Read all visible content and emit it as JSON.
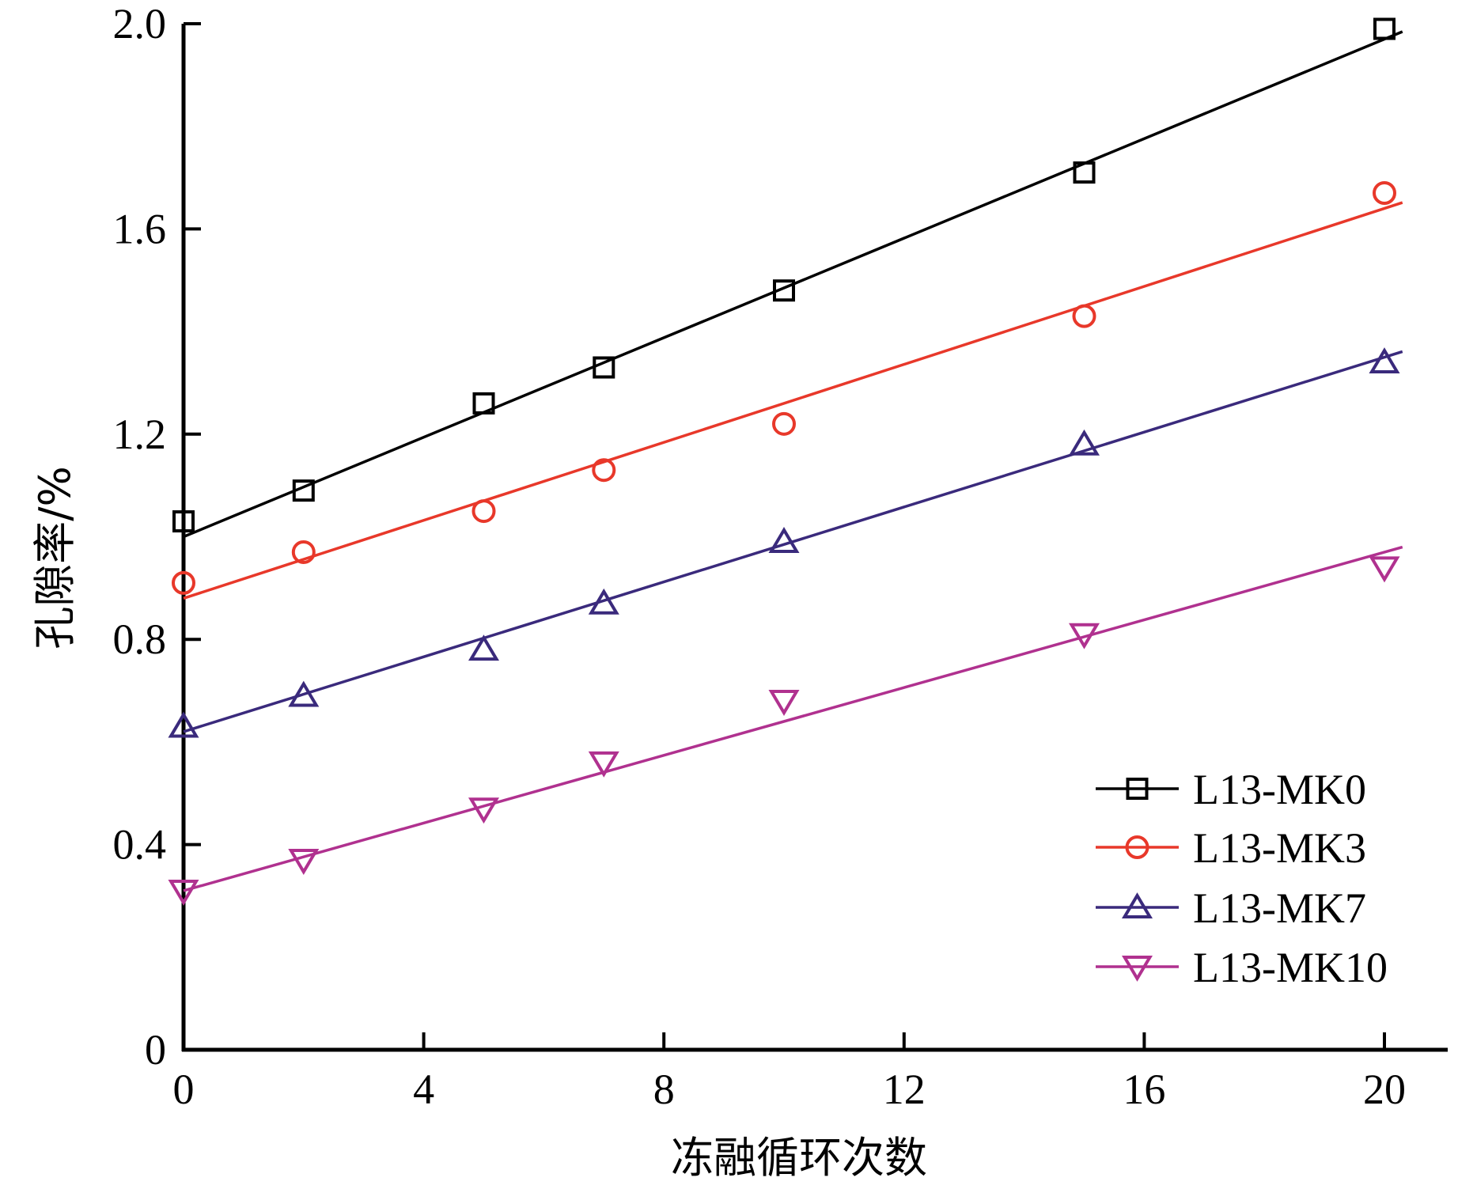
{
  "chart_data": {
    "type": "scatter",
    "title": "",
    "xlabel": "冻融循环次数",
    "ylabel": "孔隙率/%",
    "xlim": [
      0,
      21
    ],
    "ylim": [
      0,
      2.0
    ],
    "xticks": [
      0,
      4,
      8,
      12,
      16,
      20
    ],
    "yticks": [
      0,
      0.4,
      0.8,
      1.2,
      1.6,
      2.0
    ],
    "xtick_labels": [
      "0",
      "4",
      "8",
      "12",
      "16",
      "20"
    ],
    "ytick_labels": [
      "0",
      "0.4",
      "0.8",
      "1.2",
      "1.6",
      "2.0"
    ],
    "grid": false,
    "legend_position": "bottom-right",
    "x": [
      0,
      2,
      5,
      7,
      10,
      15,
      20
    ],
    "series": [
      {
        "name": "L13-MK0",
        "marker": "square",
        "color": "#000000",
        "values": [
          1.03,
          1.09,
          1.26,
          1.33,
          1.48,
          1.71,
          1.99
        ],
        "fit_line": [
          1.0,
          1.97
        ]
      },
      {
        "name": "L13-MK3",
        "marker": "circle",
        "color": "#e8382a",
        "values": [
          0.91,
          0.97,
          1.05,
          1.13,
          1.22,
          1.43,
          1.67
        ],
        "fit_line": [
          0.88,
          1.64
        ]
      },
      {
        "name": "L13-MK7",
        "marker": "triangle-up",
        "color": "#3a2a7c",
        "values": [
          0.63,
          0.69,
          0.78,
          0.87,
          0.99,
          1.18,
          1.34
        ],
        "fit_line": [
          0.62,
          1.35
        ]
      },
      {
        "name": "L13-MK10",
        "marker": "triangle-down",
        "color": "#b0318f",
        "values": [
          0.31,
          0.37,
          0.47,
          0.56,
          0.68,
          0.81,
          0.94
        ],
        "fit_line": [
          0.31,
          0.97
        ]
      }
    ]
  }
}
